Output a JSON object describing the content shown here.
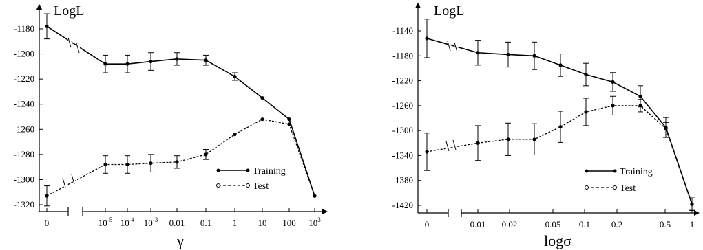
{
  "chart_data": [
    {
      "type": "line",
      "ylabel": "LogL",
      "xlabel": "γ",
      "categories": [
        "0",
        "10-5",
        "10-4",
        "10-3",
        "0.01",
        "0.1",
        "1",
        "10",
        "100",
        "103"
      ],
      "category_labels": [
        {
          "base": "0",
          "sup": ""
        },
        {
          "base": "10",
          "sup": "-5"
        },
        {
          "base": "10",
          "sup": "-4"
        },
        {
          "base": "10",
          "sup": "-3"
        },
        {
          "base": "0.01",
          "sup": ""
        },
        {
          "base": "0.1",
          "sup": ""
        },
        {
          "base": "1",
          "sup": ""
        },
        {
          "base": "10",
          "sup": ""
        },
        {
          "base": "100",
          "sup": ""
        },
        {
          "base": "10",
          "sup": "3"
        }
      ],
      "yticks": [
        -1180,
        -1200,
        -1220,
        -1240,
        -1260,
        -1280,
        -1300,
        -1320
      ],
      "ylim": [
        -1325,
        -1168
      ],
      "series": [
        {
          "name": "Training",
          "style": "solid",
          "values": [
            -1178,
            -1208,
            -1208,
            -1206,
            -1204,
            -1205,
            -1218,
            -1235,
            -1252,
            -1313
          ],
          "errors": [
            10,
            7,
            7,
            7,
            5,
            4,
            3,
            1,
            1,
            1
          ]
        },
        {
          "name": "Test",
          "style": "dashed",
          "values": [
            -1313,
            -1288,
            -1288,
            -1287,
            -1286,
            -1280,
            -1264,
            -1252,
            -1256,
            -1313
          ],
          "errors": [
            8,
            7,
            7,
            7,
            5,
            4,
            1,
            1,
            1,
            1
          ]
        }
      ],
      "legend_position": "lower-right",
      "grid": false
    },
    {
      "type": "line",
      "ylabel": "LogL",
      "xlabel": "logσ",
      "categories": [
        "0",
        "0.01",
        "0.02",
        "0.05",
        "0.1",
        "0.2",
        "0.5",
        "1"
      ],
      "x": [
        0,
        0.008,
        0.015,
        0.03,
        0.055,
        0.1,
        0.18,
        0.32,
        0.55,
        1.0
      ],
      "yticks": [
        -1140,
        -1180,
        -1220,
        -1260,
        -1300,
        -1340,
        -1380,
        -1420
      ],
      "ylim": [
        -1430,
        -1120
      ],
      "series": [
        {
          "name": "Training",
          "style": "solid",
          "values": [
            -1152,
            -1175,
            -1178,
            -1180,
            -1195,
            -1210,
            -1222,
            -1245,
            -1295,
            -1418
          ],
          "errors": [
            31,
            20,
            20,
            22,
            18,
            18,
            15,
            17,
            16,
            10
          ]
        },
        {
          "name": "Test",
          "style": "dashed",
          "values": [
            -1334,
            -1320,
            -1314,
            -1314,
            -1294,
            -1270,
            -1260,
            -1260,
            -1297,
            -1418
          ],
          "errors": [
            30,
            28,
            26,
            25,
            25,
            22,
            15,
            10,
            10,
            10
          ]
        }
      ],
      "legend_position": "lower-right",
      "grid": false
    }
  ]
}
